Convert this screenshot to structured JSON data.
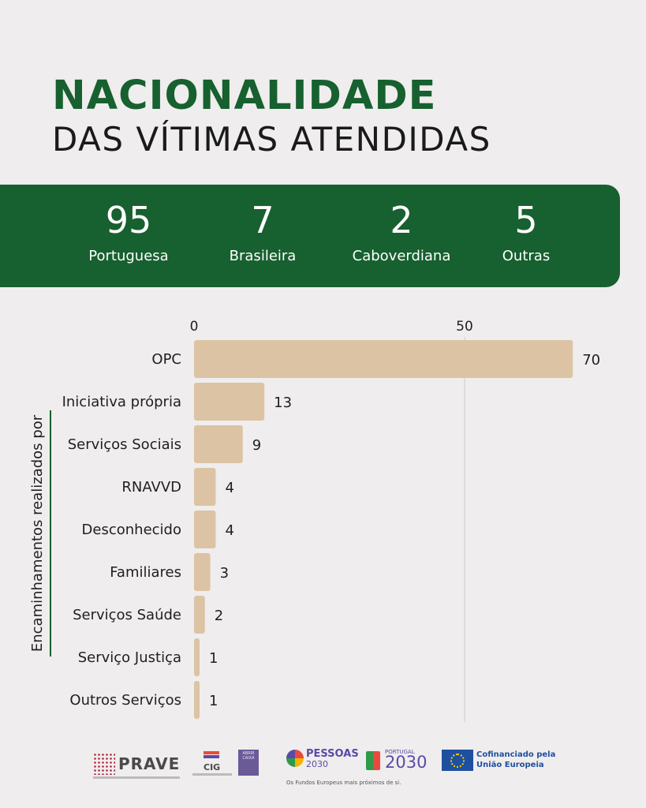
{
  "header": {
    "title": "NACIONALIDADE",
    "subtitle": "DAS VÍTIMAS ATENDIDAS"
  },
  "stats": [
    {
      "value": "95",
      "label": "Portuguesa"
    },
    {
      "value": "7",
      "label": "Brasileira"
    },
    {
      "value": "2",
      "label": "Caboverdiana"
    },
    {
      "value": "5",
      "label": "Outras"
    }
  ],
  "chart_data": {
    "type": "bar",
    "orientation": "horizontal",
    "categories": [
      "OPC",
      "Iniciativa própria",
      "Serviços Sociais",
      "RNAVVD",
      "Desconhecido",
      "Familiares",
      "Serviços Saúde",
      "Serviço Justiça",
      "Outros Serviços"
    ],
    "values": [
      70,
      13,
      9,
      4,
      4,
      3,
      2,
      1,
      1
    ],
    "xticks": [
      "0",
      "50"
    ],
    "xlim": [
      0,
      70
    ],
    "ylabel": "Encaminhamentos realizados por",
    "grid": true,
    "bar_color": "#dcc3a4"
  },
  "footer": {
    "prave": "PRAVE",
    "cig": "CIG",
    "abrir": "ABRIR CAIXA",
    "pessoas": "PESSOAS",
    "pessoas_num": "2030",
    "fundos": "Os Fundos Europeus mais próximos de si.",
    "portugal_small": "PORTUGAL",
    "portugal_num": "2030",
    "eu_line1": "Cofinanciado pela",
    "eu_line2": "União Europeia"
  },
  "colors": {
    "accent": "#17602f",
    "background": "#efeded",
    "bar": "#dcc3a4"
  }
}
